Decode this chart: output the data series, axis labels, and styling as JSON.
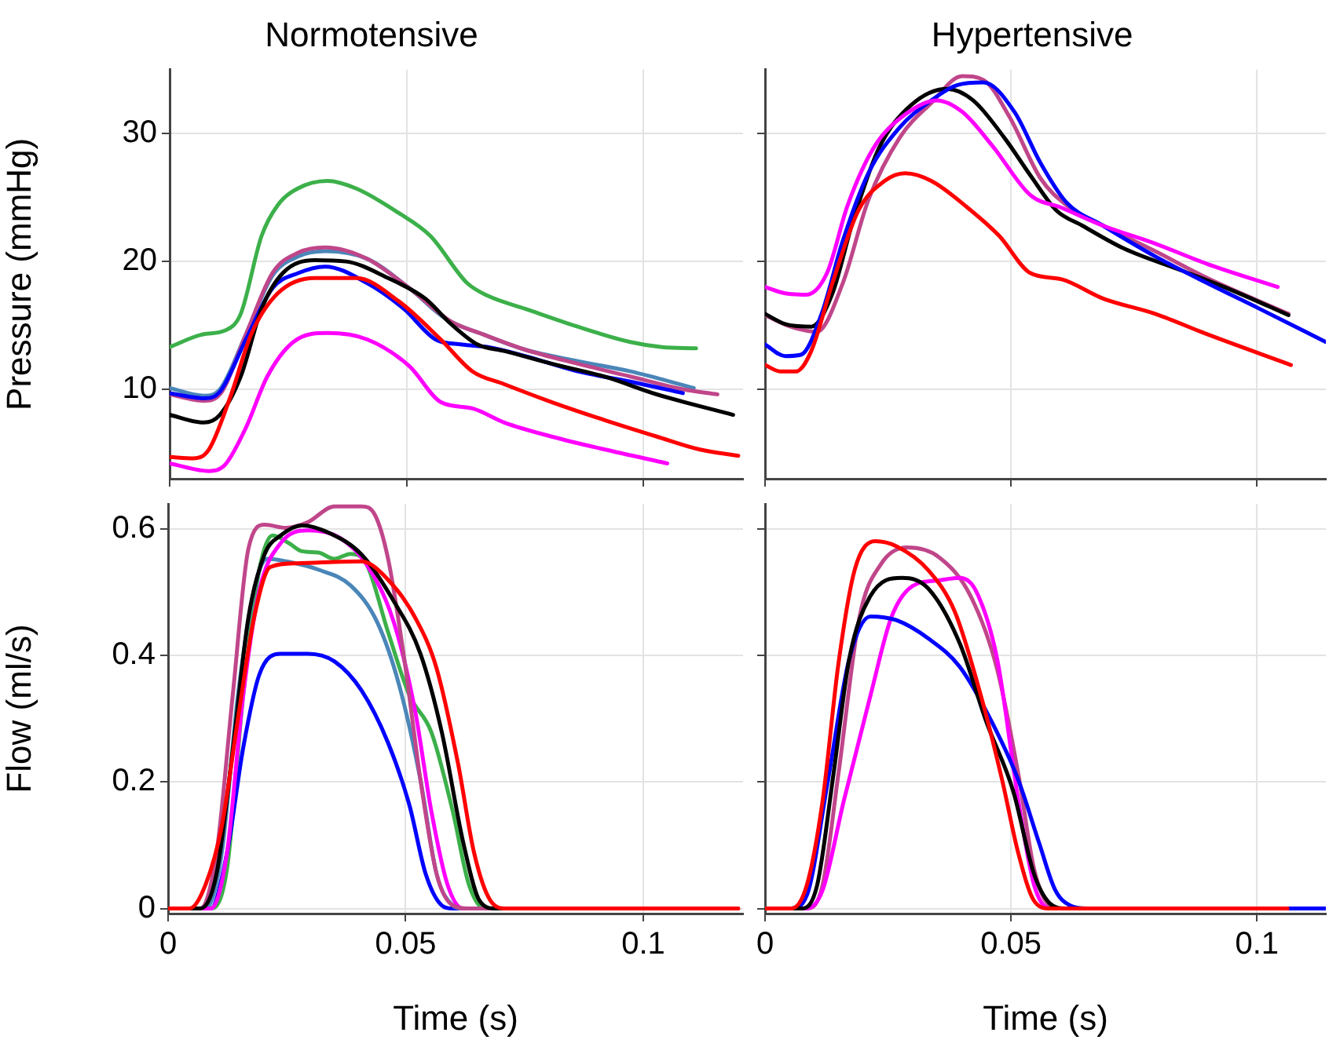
{
  "chart_data": [
    {
      "type": "line",
      "title": "Normotensive",
      "ylabel": "Pressure (mmHg)",
      "xlim": [
        0,
        0.121
      ],
      "ylim": [
        3,
        35
      ],
      "xticks": [
        0,
        0.05,
        0.1
      ],
      "yticks": [
        10,
        20,
        30
      ],
      "grid": true,
      "tick_labels": "y",
      "series": [
        {
          "color": "#3cb04a",
          "x": [
            0,
            0.007,
            0.0117,
            0.015,
            0.0194,
            0.0228,
            0.027,
            0.0333,
            0.0394,
            0.0483,
            0.055,
            0.0628,
            0.0672,
            0.075,
            0.0861,
            0.0972,
            0.1039,
            0.1111
          ],
          "values": [
            13.3,
            14.3,
            14.6,
            15.9,
            22.0,
            24.4,
            25.7,
            26.3,
            25.7,
            23.8,
            22.0,
            18.3,
            17.3,
            16.3,
            14.9,
            13.7,
            13.3,
            13.2
          ]
        },
        {
          "color": "#ff00ff",
          "x": [
            0,
            0.0083,
            0.0117,
            0.0161,
            0.0206,
            0.0261,
            0.0333,
            0.0417,
            0.0506,
            0.0572,
            0.0639,
            0.0706,
            0.0806,
            0.0917,
            0.105
          ],
          "values": [
            4.2,
            3.6,
            4.1,
            7.0,
            11.0,
            13.7,
            14.4,
            13.9,
            11.8,
            9.0,
            8.5,
            7.4,
            6.3,
            5.3,
            4.2
          ]
        },
        {
          "color": "#ff0000",
          "x": [
            0,
            0.005,
            0.0083,
            0.0128,
            0.0172,
            0.0228,
            0.0306,
            0.0394,
            0.0483,
            0.0572,
            0.0639,
            0.0706,
            0.0806,
            0.0917,
            0.1028,
            0.1117,
            0.12
          ],
          "values": [
            4.7,
            4.6,
            5.3,
            9.4,
            14.3,
            17.5,
            18.7,
            18.7,
            16.9,
            13.9,
            11.4,
            10.4,
            9.0,
            7.6,
            6.3,
            5.3,
            4.8
          ]
        },
        {
          "color": "#000000",
          "x": [
            0,
            0.0072,
            0.0106,
            0.015,
            0.0194,
            0.0239,
            0.0306,
            0.0372,
            0.0461,
            0.0539,
            0.0594,
            0.065,
            0.0706,
            0.0806,
            0.0917,
            0.1028,
            0.1189
          ],
          "values": [
            8.0,
            7.4,
            8.0,
            11.0,
            16.3,
            19.1,
            20.1,
            20.0,
            18.7,
            17.1,
            15.1,
            13.5,
            13.0,
            12.0,
            11.0,
            9.6,
            8.0
          ]
        },
        {
          "color": "#0000ff",
          "x": [
            0,
            0.0072,
            0.0106,
            0.0161,
            0.0217,
            0.0272,
            0.0328,
            0.0417,
            0.0494,
            0.0561,
            0.0617,
            0.0672,
            0.075,
            0.0861,
            0.0972,
            0.1083
          ],
          "values": [
            9.7,
            9.3,
            9.8,
            13.9,
            17.9,
            19.1,
            19.6,
            18.3,
            16.3,
            13.9,
            13.5,
            13.3,
            12.6,
            11.4,
            10.6,
            9.7
          ]
        },
        {
          "color": "#c0468a",
          "x": [
            0,
            0.0072,
            0.0106,
            0.0161,
            0.0217,
            0.0272,
            0.0328,
            0.0417,
            0.0506,
            0.0594,
            0.0661,
            0.075,
            0.0861,
            0.0972,
            0.1083,
            0.1156
          ],
          "values": [
            9.6,
            9.1,
            9.6,
            14.3,
            19.1,
            20.7,
            21.1,
            20.2,
            17.9,
            15.3,
            14.3,
            13.1,
            12.0,
            11.0,
            10.0,
            9.6
          ]
        },
        {
          "color": "#4a86b8",
          "x": [
            0,
            0.0072,
            0.0106,
            0.0161,
            0.0217,
            0.0272,
            0.0328,
            0.0417,
            0.0506,
            0.0583,
            0.0661,
            0.075,
            0.0861,
            0.0972,
            0.1106
          ],
          "values": [
            10.1,
            9.5,
            10.0,
            14.3,
            18.9,
            20.4,
            20.8,
            20.2,
            17.9,
            15.5,
            14.3,
            13.1,
            12.2,
            11.4,
            10.1
          ]
        }
      ]
    },
    {
      "type": "line",
      "title": "Hypertensive",
      "xlim": [
        0,
        0.114
      ],
      "ylim": [
        3,
        35
      ],
      "xticks": [
        0,
        0.05,
        0.1
      ],
      "yticks": [
        10,
        20,
        30
      ],
      "grid": true,
      "tick_labels": false,
      "series": [
        {
          "color": "#ff00ff",
          "x": [
            0,
            0.0041,
            0.0084,
            0.0126,
            0.0168,
            0.0221,
            0.0285,
            0.0349,
            0.0401,
            0.0465,
            0.0539,
            0.0603,
            0.0687,
            0.0793,
            0.0899,
            0.1042
          ],
          "values": [
            18.0,
            17.5,
            17.4,
            19.1,
            24.4,
            28.9,
            31.5,
            32.6,
            31.7,
            28.9,
            25.2,
            24.2,
            22.8,
            21.4,
            19.8,
            18.0
          ]
        },
        {
          "color": "#ff0000",
          "x": [
            0,
            0.0031,
            0.0063,
            0.0094,
            0.0137,
            0.019,
            0.0243,
            0.0285,
            0.0338,
            0.0412,
            0.0476,
            0.0539,
            0.0603,
            0.0687,
            0.0793,
            0.0899,
            0.1069
          ],
          "values": [
            11.9,
            11.4,
            11.4,
            13.0,
            18.3,
            24.0,
            26.3,
            26.9,
            26.3,
            24.2,
            22.0,
            19.1,
            18.6,
            17.1,
            15.9,
            14.3,
            11.9
          ]
        },
        {
          "color": "#0000ff",
          "x": [
            0,
            0.0041,
            0.0073,
            0.0115,
            0.0158,
            0.021,
            0.0274,
            0.0338,
            0.0391,
            0.0444,
            0.0507,
            0.056,
            0.0613,
            0.0687,
            0.0793,
            0.0899,
            0.1005,
            0.114
          ],
          "values": [
            13.5,
            12.6,
            12.7,
            15.9,
            21.6,
            26.9,
            30.5,
            32.6,
            33.8,
            34.0,
            31.7,
            27.7,
            24.6,
            22.8,
            20.4,
            18.3,
            16.3,
            13.7
          ]
        },
        {
          "color": "#000000",
          "x": [
            0,
            0.0041,
            0.0094,
            0.0137,
            0.0179,
            0.0232,
            0.0296,
            0.037,
            0.0423,
            0.0486,
            0.054,
            0.0592,
            0.0645,
            0.073,
            0.0846,
            0.0952,
            0.1064
          ],
          "values": [
            15.9,
            15.1,
            14.9,
            17.5,
            23.2,
            28.9,
            32.2,
            33.5,
            32.6,
            29.7,
            26.7,
            24.0,
            22.8,
            21.0,
            19.3,
            17.7,
            15.8
          ]
        },
        {
          "color": "#c0468a",
          "x": [
            0,
            0.0052,
            0.0105,
            0.0158,
            0.021,
            0.0274,
            0.0338,
            0.0401,
            0.0444,
            0.0497,
            0.056,
            0.0613,
            0.0687,
            0.0793,
            0.0899,
            0.1064
          ],
          "values": [
            15.8,
            14.9,
            14.5,
            18.3,
            24.8,
            29.7,
            32.4,
            34.5,
            34.2,
            31.3,
            26.5,
            24.4,
            22.8,
            20.8,
            18.7,
            15.9
          ]
        }
      ]
    },
    {
      "type": "line",
      "xlabel": "Time (s)",
      "ylabel": "Flow (ml/s)",
      "xlim": [
        0,
        0.121
      ],
      "ylim": [
        -0.008,
        0.64
      ],
      "xticks": [
        0,
        0.05,
        0.1
      ],
      "yticks": [
        0,
        0.2,
        0.4,
        0.6
      ],
      "grid": true,
      "series": [
        {
          "color": "#ff0000",
          "x": [
            0,
            0.0045,
            0.0079,
            0.0113,
            0.0147,
            0.0181,
            0.0215,
            0.0271,
            0.0407,
            0.0463,
            0.052,
            0.0565,
            0.061,
            0.0644,
            0.0678,
            0.0712,
            0.12
          ],
          "values": [
            0,
            0,
            0.038,
            0.13,
            0.3,
            0.46,
            0.54,
            0.546,
            0.549,
            0.52,
            0.46,
            0.38,
            0.23,
            0.088,
            0.013,
            0,
            0
          ]
        },
        {
          "color": "#000000",
          "x": [
            0,
            0.0068,
            0.0102,
            0.0136,
            0.0169,
            0.0203,
            0.0237,
            0.0282,
            0.0339,
            0.0407,
            0.0475,
            0.0531,
            0.0576,
            0.0621,
            0.0655,
            0.0689,
            0.1186
          ],
          "values": [
            0,
            0,
            0.055,
            0.25,
            0.46,
            0.56,
            0.59,
            0.606,
            0.594,
            0.56,
            0.486,
            0.403,
            0.279,
            0.105,
            0.013,
            0,
            0
          ]
        },
        {
          "color": "#c0468a",
          "x": [
            0,
            0.0068,
            0.0102,
            0.0136,
            0.0169,
            0.0203,
            0.0249,
            0.0294,
            0.035,
            0.0407,
            0.0435,
            0.0463,
            0.0497,
            0.0531,
            0.0565,
            0.0599,
            0.0633,
            0.1153
          ],
          "values": [
            0,
            0,
            0.088,
            0.337,
            0.569,
            0.607,
            0.602,
            0.611,
            0.636,
            0.636,
            0.623,
            0.553,
            0.395,
            0.204,
            0.055,
            0.005,
            0,
            0
          ]
        },
        {
          "color": "#ff00ff",
          "x": [
            0,
            0.009,
            0.0124,
            0.0158,
            0.0192,
            0.0237,
            0.0294,
            0.0362,
            0.0418,
            0.0475,
            0.052,
            0.0554,
            0.0588,
            0.0621,
            0.07
          ],
          "values": [
            0,
            0,
            0.088,
            0.337,
            0.503,
            0.578,
            0.598,
            0.586,
            0.544,
            0.453,
            0.312,
            0.154,
            0.038,
            0,
            0
          ]
        },
        {
          "color": "#4a86b8",
          "x": [
            0,
            0.0079,
            0.0113,
            0.0147,
            0.0181,
            0.0209,
            0.0249,
            0.0316,
            0.0384,
            0.044,
            0.0486,
            0.0531,
            0.0565,
            0.0599,
            0.0621,
            0.07
          ],
          "values": [
            0,
            0,
            0.088,
            0.337,
            0.503,
            0.553,
            0.549,
            0.536,
            0.511,
            0.453,
            0.354,
            0.204,
            0.055,
            0.005,
            0,
            0
          ]
        },
        {
          "color": "#0000ff",
          "x": [
            0,
            0.009,
            0.0124,
            0.0158,
            0.0192,
            0.0237,
            0.0294,
            0.035,
            0.0407,
            0.0463,
            0.0508,
            0.0542,
            0.0576,
            0.0599,
            0.07
          ],
          "values": [
            0,
            0,
            0.088,
            0.254,
            0.37,
            0.403,
            0.403,
            0.391,
            0.345,
            0.262,
            0.163,
            0.055,
            0.005,
            0,
            0
          ]
        },
        {
          "color": "#3cb04a",
          "x": [
            0,
            0.0045,
            0.009,
            0.0124,
            0.0158,
            0.0192,
            0.022,
            0.0254,
            0.0282,
            0.0316,
            0.035,
            0.0384,
            0.0418,
            0.0463,
            0.0508,
            0.0554,
            0.0599,
            0.0633,
            0.0667,
            0.1107
          ],
          "values": [
            0,
            0,
            0,
            0.063,
            0.337,
            0.536,
            0.59,
            0.578,
            0.565,
            0.563,
            0.553,
            0.561,
            0.544,
            0.437,
            0.337,
            0.279,
            0.154,
            0.038,
            0,
            0
          ]
        }
      ]
    },
    {
      "type": "line",
      "xlabel": "Time (s)",
      "xlim": [
        0,
        0.114
      ],
      "ylim": [
        -0.008,
        0.64
      ],
      "xticks": [
        0,
        0.05,
        0.1
      ],
      "yticks": [
        0,
        0.2,
        0.4,
        0.6
      ],
      "grid": true,
      "tick_labels": "x",
      "series": [
        {
          "color": "#ff0000",
          "x": [
            0,
            0.0053,
            0.0085,
            0.0117,
            0.0149,
            0.0182,
            0.0224,
            0.0267,
            0.0332,
            0.0386,
            0.0439,
            0.0482,
            0.0515,
            0.0547,
            0.0579,
            0.1062
          ],
          "values": [
            0,
            0,
            0.037,
            0.17,
            0.386,
            0.535,
            0.581,
            0.573,
            0.535,
            0.469,
            0.336,
            0.203,
            0.087,
            0.012,
            0,
            0
          ]
        },
        {
          "color": "#000000",
          "x": [
            0,
            0.0074,
            0.0106,
            0.0139,
            0.0171,
            0.0214,
            0.0278,
            0.0332,
            0.0396,
            0.045,
            0.0504,
            0.0547,
            0.0579,
            0.0611,
            0.07
          ],
          "values": [
            0,
            0,
            0.037,
            0.212,
            0.394,
            0.494,
            0.523,
            0.506,
            0.419,
            0.295,
            0.187,
            0.054,
            0.008,
            0,
            0
          ]
        },
        {
          "color": "#0000ff",
          "x": [
            0,
            0.0053,
            0.0085,
            0.0128,
            0.0171,
            0.0214,
            0.0267,
            0.0332,
            0.0396,
            0.0461,
            0.0515,
            0.0557,
            0.059,
            0.0622,
            0.0654,
            0.114
          ],
          "values": [
            0,
            0,
            0.021,
            0.203,
            0.394,
            0.462,
            0.456,
            0.427,
            0.382,
            0.295,
            0.203,
            0.104,
            0.029,
            0.004,
            0,
            0
          ]
        },
        {
          "color": "#ff00ff",
          "x": [
            0,
            0.0085,
            0.0117,
            0.016,
            0.0214,
            0.0257,
            0.03,
            0.0353,
            0.0396,
            0.0429,
            0.0472,
            0.0515,
            0.0547,
            0.0579,
            0.065
          ],
          "values": [
            0,
            0,
            0.029,
            0.17,
            0.336,
            0.461,
            0.51,
            0.519,
            0.523,
            0.502,
            0.394,
            0.17,
            0.037,
            0,
            0
          ]
        },
        {
          "color": "#c0468a",
          "x": [
            0,
            0.0085,
            0.0117,
            0.0149,
            0.0192,
            0.0235,
            0.0289,
            0.0353,
            0.0418,
            0.0472,
            0.0515,
            0.0547,
            0.0579,
            0.06,
            0.1062
          ],
          "values": [
            0,
            0,
            0.037,
            0.212,
            0.461,
            0.544,
            0.571,
            0.556,
            0.494,
            0.378,
            0.212,
            0.062,
            0.004,
            0,
            0
          ]
        }
      ]
    }
  ]
}
